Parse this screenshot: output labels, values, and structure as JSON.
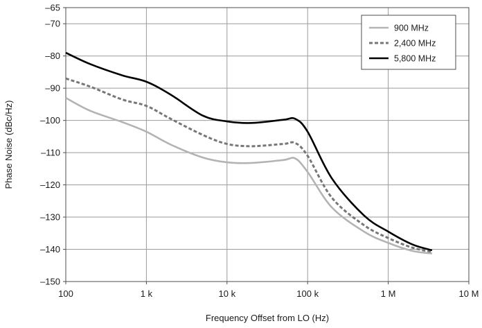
{
  "chart_data": {
    "type": "line",
    "title": "",
    "xlabel": "Frequency Offset from LO (Hz)",
    "ylabel": "Phase Noise (dBc/Hz)",
    "x_scale": "log",
    "xlim": [
      100,
      10000000
    ],
    "ylim": [
      -150,
      -65
    ],
    "x_ticks": [
      100,
      1000,
      10000,
      100000,
      1000000,
      10000000
    ],
    "x_tick_labels": [
      "100",
      "1 k",
      "10 k",
      "100 k",
      "1 M",
      "10 M"
    ],
    "y_ticks": [
      -150,
      -140,
      -130,
      -120,
      -110,
      -100,
      -90,
      -80,
      -70,
      -65
    ],
    "y_tick_labels": [
      "–150",
      "–140",
      "–130",
      "–120",
      "–110",
      "–100",
      "–90",
      "–80",
      "–70",
      "–65"
    ],
    "grid": true,
    "legend_position": "top-right",
    "series": [
      {
        "name": "900 MHz",
        "color": "#b3b3b3",
        "style": "solid",
        "points": [
          [
            100,
            -93
          ],
          [
            200,
            -97
          ],
          [
            500,
            -100.5
          ],
          [
            1000,
            -103.5
          ],
          [
            2000,
            -107.5
          ],
          [
            5000,
            -111.5
          ],
          [
            10000,
            -113
          ],
          [
            20000,
            -113.2
          ],
          [
            50000,
            -112.3
          ],
          [
            70000,
            -111.8
          ],
          [
            100000,
            -116
          ],
          [
            200000,
            -127
          ],
          [
            500000,
            -134.5
          ],
          [
            1000000,
            -138
          ],
          [
            2000000,
            -140.5
          ],
          [
            3500000,
            -141.3
          ]
        ]
      },
      {
        "name": "2,400 MHz",
        "color": "#777777",
        "style": "dashed",
        "points": [
          [
            100,
            -87
          ],
          [
            200,
            -89.5
          ],
          [
            500,
            -93.5
          ],
          [
            1000,
            -95.5
          ],
          [
            2000,
            -99.5
          ],
          [
            5000,
            -104.5
          ],
          [
            10000,
            -107.3
          ],
          [
            20000,
            -108
          ],
          [
            50000,
            -107.3
          ],
          [
            70000,
            -107
          ],
          [
            100000,
            -111
          ],
          [
            200000,
            -124
          ],
          [
            500000,
            -132.5
          ],
          [
            1000000,
            -136.5
          ],
          [
            2000000,
            -139.5
          ],
          [
            3500000,
            -140.8
          ]
        ]
      },
      {
        "name": "5,800 MHz",
        "color": "#000000",
        "style": "solid",
        "points": [
          [
            100,
            -79
          ],
          [
            200,
            -82.5
          ],
          [
            500,
            -86
          ],
          [
            1000,
            -88
          ],
          [
            2000,
            -92
          ],
          [
            5000,
            -98.5
          ],
          [
            10000,
            -100.3
          ],
          [
            20000,
            -100.8
          ],
          [
            50000,
            -99.8
          ],
          [
            70000,
            -99.5
          ],
          [
            100000,
            -103.5
          ],
          [
            200000,
            -118
          ],
          [
            500000,
            -129.5
          ],
          [
            1000000,
            -134.5
          ],
          [
            2000000,
            -138.5
          ],
          [
            3500000,
            -140.3
          ]
        ]
      }
    ]
  }
}
